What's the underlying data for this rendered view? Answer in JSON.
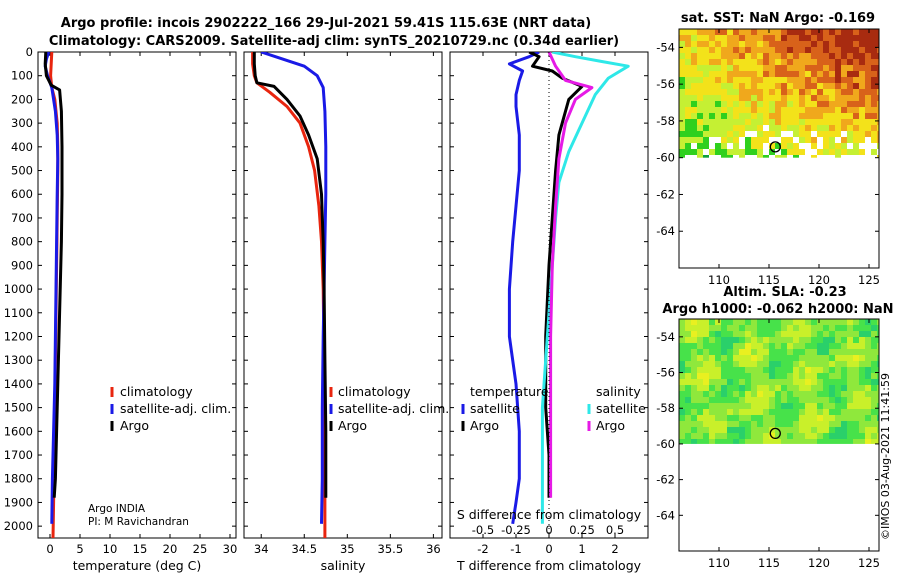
{
  "figure": {
    "title_line1": "Argo profile: incois 2902222_166 29-Jul-2021 59.41S 115.63E (NRT data)",
    "title_line2": "Climatology: CARS2009. Satellite-adj clim: synTS_20210729.nc (0.34d earlier)",
    "info_line1": "Argo INDIA",
    "info_line2": "PI: M Ravichandran",
    "watermark": "©IMOS 03-Aug-2021 11:41:59"
  },
  "colors": {
    "climatology": "#e8250f",
    "satellite": "#1a1ae6",
    "argo": "#000000",
    "temperature_sat": "#1a1ae6",
    "temperature_argo": "#000000",
    "salinity_sat": "#2ee8e8",
    "salinity_argo": "#e61ae6"
  },
  "chart_data": [
    {
      "id": "temperature",
      "type": "line",
      "xlabel": "temperature (deg C)",
      "ylabel": "",
      "xlim": [
        -2,
        31
      ],
      "ylim": [
        2050,
        0
      ],
      "xticks": [
        0,
        5,
        10,
        15,
        20,
        25,
        30
      ],
      "yticks": [
        0,
        100,
        200,
        300,
        400,
        500,
        600,
        700,
        800,
        900,
        1000,
        1100,
        1200,
        1300,
        1400,
        1500,
        1600,
        1700,
        1800,
        1900,
        2000
      ],
      "legend": [
        "climatology",
        "satellite-adj. clim.",
        "Argo"
      ],
      "series": [
        {
          "name": "climatology",
          "color_key": "climatology",
          "x": [
            0.3,
            0.2,
            0.1,
            0.3,
            0.8,
            1.2,
            1.3,
            1.3,
            1.2,
            1.1,
            1.0,
            0.9,
            0.8,
            0.7,
            0.6,
            0.5
          ],
          "y": [
            0,
            50,
            100,
            150,
            200,
            300,
            400,
            500,
            700,
            900,
            1100,
            1300,
            1500,
            1700,
            1900,
            2050
          ]
        },
        {
          "name": "satellite-adj. clim.",
          "color_key": "satellite",
          "x": [
            -0.2,
            -0.6,
            -0.8,
            -0.4,
            0.3,
            0.9,
            1.2,
            1.3,
            1.2,
            1.1,
            1.0,
            0.9,
            0.8,
            0.6,
            0.4,
            0.3
          ],
          "y": [
            0,
            30,
            60,
            100,
            150,
            250,
            350,
            450,
            600,
            800,
            1000,
            1200,
            1400,
            1600,
            1800,
            1990
          ]
        },
        {
          "name": "Argo",
          "color_key": "argo",
          "x": [
            -0.7,
            -0.8,
            -0.6,
            0.2,
            1.6,
            1.9,
            2.0,
            2.0,
            1.9,
            1.7,
            1.5,
            1.3,
            1.1,
            0.9,
            0.7
          ],
          "y": [
            0,
            50,
            100,
            140,
            160,
            250,
            400,
            600,
            800,
            1000,
            1200,
            1400,
            1600,
            1800,
            1880
          ]
        }
      ]
    },
    {
      "id": "salinity",
      "type": "line",
      "xlabel": "salinity",
      "ylabel": "",
      "xlim": [
        33.8,
        36.1
      ],
      "ylim": [
        2050,
        0
      ],
      "xticks": [
        34,
        34.5,
        35,
        35.5,
        36
      ],
      "xtick_labels": [
        "34",
        "34.5",
        "35",
        "35.5",
        "36"
      ],
      "legend": [
        "climatology",
        "satellite-adj. clim.",
        "Argo"
      ],
      "series": [
        {
          "name": "climatology",
          "color_key": "climatology",
          "x": [
            33.9,
            33.9,
            33.92,
            33.95,
            34.1,
            34.3,
            34.45,
            34.55,
            34.62,
            34.67,
            34.7,
            34.72,
            34.73,
            34.74,
            34.74,
            34.74
          ],
          "y": [
            0,
            50,
            100,
            130,
            170,
            230,
            300,
            400,
            500,
            650,
            800,
            1000,
            1300,
            1600,
            1900,
            2050
          ]
        },
        {
          "name": "satellite-adj. clim.",
          "color_key": "satellite",
          "x": [
            34.0,
            34.25,
            34.5,
            34.65,
            34.72,
            34.74,
            34.75,
            34.75,
            34.74,
            34.73,
            34.72,
            34.71,
            34.71,
            34.7
          ],
          "y": [
            0,
            30,
            60,
            100,
            150,
            250,
            400,
            600,
            800,
            1000,
            1200,
            1500,
            1800,
            1990
          ]
        },
        {
          "name": "Argo",
          "color_key": "argo",
          "x": [
            33.92,
            33.92,
            33.93,
            33.95,
            34.15,
            34.3,
            34.45,
            34.55,
            34.65,
            34.7,
            34.72,
            34.73,
            34.74,
            34.75,
            34.75
          ],
          "y": [
            0,
            50,
            100,
            130,
            145,
            200,
            270,
            350,
            450,
            600,
            800,
            1000,
            1300,
            1600,
            1880
          ]
        }
      ]
    },
    {
      "id": "difference",
      "type": "line",
      "xlabel": "T difference from climatology",
      "xlabel_top": "S difference from climatology",
      "ylabel": "",
      "xlim": [
        -3,
        3
      ],
      "ylim": [
        2050,
        0
      ],
      "xticks": [
        -2,
        -1,
        0,
        1,
        2
      ],
      "xtick_labels": [
        "-2",
        "-1",
        "0",
        "1",
        "2"
      ],
      "xticks_top": [
        -2,
        -1,
        0,
        1,
        2
      ],
      "xtick_labels_top": [
        "-0.5",
        "-0.25",
        "0",
        "0.25",
        "0.5"
      ],
      "legend_left_title": "temperature",
      "legend_right_title": "salinity",
      "legend_left": [
        "satellite",
        "Argo"
      ],
      "legend_right": [
        "satellite",
        "Argo"
      ],
      "series": [
        {
          "name": "temperature satellite",
          "color_key": "temperature_sat",
          "x": [
            -0.3,
            -0.6,
            -1.2,
            -0.8,
            -0.9,
            -1.0,
            -1.0,
            -0.9,
            -0.9,
            -1.0,
            -1.1,
            -1.2,
            -1.2,
            -1.0,
            -0.9,
            -0.9,
            -1.0,
            -1.1
          ],
          "y": [
            0,
            20,
            50,
            80,
            120,
            180,
            230,
            350,
            500,
            650,
            800,
            1000,
            1200,
            1400,
            1600,
            1800,
            1900,
            1990
          ]
        },
        {
          "name": "temperature Argo",
          "color_key": "temperature_argo",
          "x": [
            -0.6,
            -0.3,
            -0.5,
            0.1,
            0.4,
            1.0,
            0.6,
            0.3,
            0.2,
            0.1,
            0.0,
            -0.1,
            -0.1,
            0.0,
            0.0
          ],
          "y": [
            0,
            20,
            60,
            80,
            110,
            145,
            200,
            350,
            500,
            700,
            900,
            1200,
            1500,
            1700,
            1880
          ]
        },
        {
          "name": "salinity satellite",
          "color_key": "salinity_sat",
          "x": [
            0.1,
            0.8,
            1.6,
            2.4,
            1.8,
            1.4,
            1.0,
            0.6,
            0.3,
            0.2,
            0.1,
            0.0,
            -0.1,
            -0.2,
            -0.2,
            -0.2,
            -0.2
          ],
          "y": [
            0,
            20,
            40,
            60,
            110,
            180,
            300,
            420,
            550,
            700,
            900,
            1100,
            1300,
            1500,
            1700,
            1900,
            1990
          ]
        },
        {
          "name": "salinity Argo",
          "color_key": "salinity_argo",
          "x": [
            0.0,
            0.2,
            0.5,
            1.3,
            0.8,
            0.5,
            0.3,
            0.2,
            0.1,
            0.05,
            0.05,
            0.05,
            0.05
          ],
          "y": [
            0,
            60,
            120,
            150,
            200,
            300,
            450,
            650,
            900,
            1200,
            1500,
            1700,
            1880
          ]
        }
      ]
    },
    {
      "id": "sst-map",
      "type": "heatmap",
      "title": "sat. SST: NaN Argo: -0.169",
      "xlim": [
        106,
        126
      ],
      "ylim": [
        -66,
        -53
      ],
      "xticks": [
        110,
        115,
        120,
        125
      ],
      "yticks": [
        -54,
        -56,
        -58,
        -60,
        -62,
        -64
      ],
      "data_bottom_lat": -60.0,
      "marker": {
        "lon": 115.63,
        "lat": -59.41
      },
      "colormap": [
        "#0ea03c",
        "#2fd01e",
        "#c5f033",
        "#f3e21a",
        "#f0a81c",
        "#d8621a",
        "#a82b10"
      ]
    },
    {
      "id": "sla-map",
      "type": "heatmap",
      "title_line1": "Altim. SLA: -0.23",
      "title_line2": "Argo h1000: -0.062 h2000: NaN",
      "xlim": [
        106,
        126
      ],
      "ylim": [
        -66,
        -53
      ],
      "xticks": [
        110,
        115,
        120,
        125
      ],
      "yticks": [
        -54,
        -56,
        -58,
        -60,
        -62,
        -64
      ],
      "data_bottom_lat": -60.0,
      "marker": {
        "lon": 115.63,
        "lat": -59.41
      },
      "colormap": [
        "#2fd0b8",
        "#2ad06a",
        "#47e24a",
        "#8fe83c",
        "#c9f02a",
        "#e9f020"
      ]
    }
  ]
}
